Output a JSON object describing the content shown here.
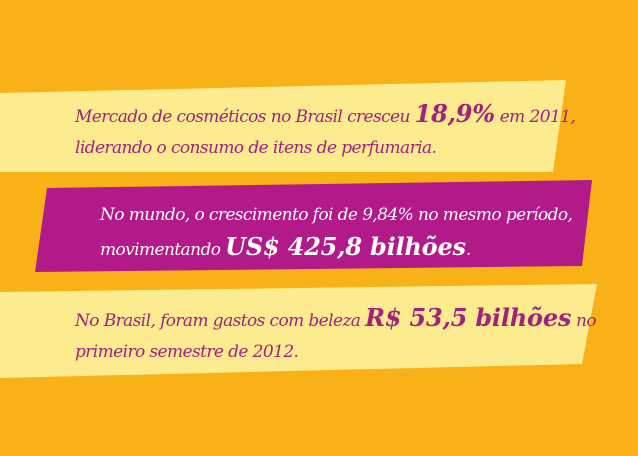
{
  "colors": {
    "background": "#F8B217",
    "band_light": "#FCEB8F",
    "band_dark": "#B31A89",
    "text_purple": "#A3227A",
    "text_white": "#FFFFFF"
  },
  "statements": [
    {
      "line1_pre": "Mercado de cosméticos no Brasil cresceu ",
      "highlight": "18,9%",
      "line1_post": " em 2011,",
      "line2": "liderando o consumo de itens de perfumaria."
    },
    {
      "line1": "No mundo, o crescimento foi de 9,84% no mesmo período,",
      "line2_pre": "movimentando ",
      "highlight": "US$ 425,8 bilhões",
      "line2_post": "."
    },
    {
      "line1_pre": "No Brasil, foram gastos com beleza ",
      "highlight": "R$ 53,5 bilhões",
      "line1_post": " no",
      "line2": "primeiro semestre de 2012."
    }
  ]
}
